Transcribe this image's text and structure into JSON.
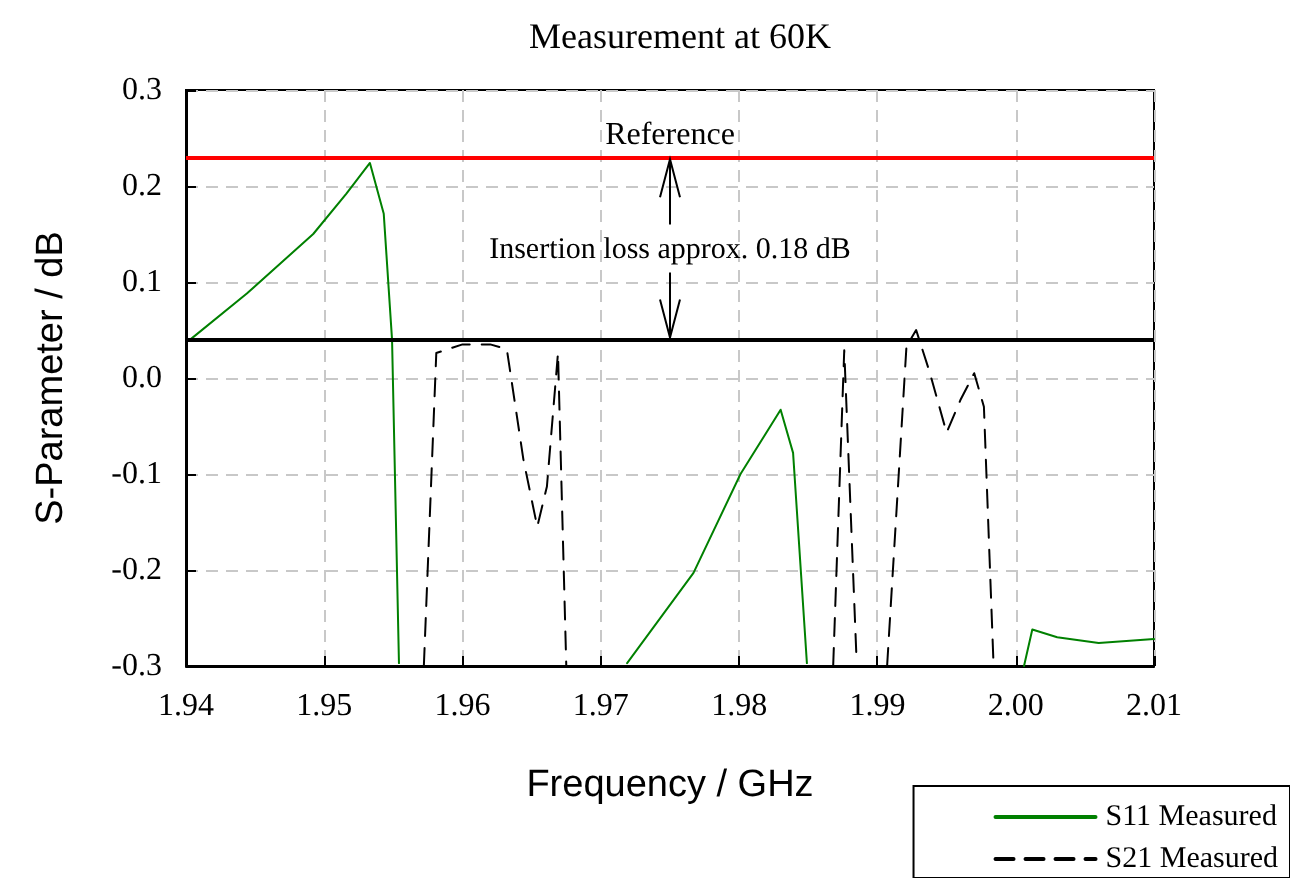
{
  "chart_data": {
    "type": "line",
    "title": "Measurement at 60K",
    "xlabel": "Frequency / GHz",
    "ylabel": "S-Parameter / dB",
    "xlim": [
      1.94,
      2.01
    ],
    "xticks": [
      1.94,
      1.95,
      1.96,
      1.97,
      1.98,
      1.99,
      {
        "value": 2.0,
        "label": "2.00"
      },
      2.01
    ],
    "ylim": [
      -0.3,
      0.3
    ],
    "yticks": [
      -0.3,
      -0.2,
      -0.1,
      {
        "value": 0,
        "label": "0.0"
      },
      0.1,
      0.2,
      0.3
    ],
    "grid": true,
    "legend": "bottom right",
    "marker": "none",
    "series": [
      {
        "name": "S11 Measured",
        "color": "#008000",
        "line_style": "solid",
        "x": [
          1.9403,
          1.9444,
          1.9492,
          1.9516,
          1.9533,
          1.9543,
          1.9549,
          1.9554,
          1.9636,
          1.9719,
          1.9767,
          1.9801,
          1.983,
          1.9839,
          1.9849,
          1.993,
          2.0006,
          2.0012,
          2.003,
          2.006,
          2.01
        ],
        "values": [
          0.04,
          0.088,
          0.15,
          0.192,
          0.224,
          0.171,
          0.04,
          -0.297,
          null,
          -0.297,
          -0.203,
          -0.1,
          -0.033,
          -0.078,
          -0.297,
          null,
          -0.3,
          -0.262,
          -0.27,
          -0.276,
          -0.272
        ]
      },
      {
        "name": "S21 Measured",
        "color": "#000000",
        "line_style": "dashed",
        "x": [
          1.9572,
          1.9581,
          1.96,
          1.962,
          1.9632,
          1.9644,
          1.9654,
          1.9661,
          1.9669,
          1.9675,
          1.977,
          1.9868,
          1.9876,
          1.9885,
          1.9896,
          1.9907,
          1.9921,
          1.9928,
          1.9938,
          1.995,
          1.996,
          1.997,
          1.9977,
          1.9984
        ],
        "values": [
          -0.3,
          0.026,
          0.035,
          0.035,
          0.03,
          -0.085,
          -0.155,
          -0.113,
          0.026,
          -0.3,
          null,
          -0.3,
          0.029,
          -0.297,
          null,
          -0.3,
          0.033,
          0.05,
          0.005,
          -0.057,
          -0.023,
          0.005,
          -0.03,
          -0.3
        ]
      }
    ],
    "ref_lines": [
      {
        "axis": "y",
        "value": 0.23,
        "label": "Reference",
        "color": "#ff0000"
      },
      {
        "axis": "y",
        "value": 0.04,
        "label": null,
        "color": "#000000"
      }
    ],
    "annotations": [
      {
        "text": "Insertion loss approx. 0.18 dB",
        "x": 1.975,
        "y": 0.23
      }
    ]
  }
}
